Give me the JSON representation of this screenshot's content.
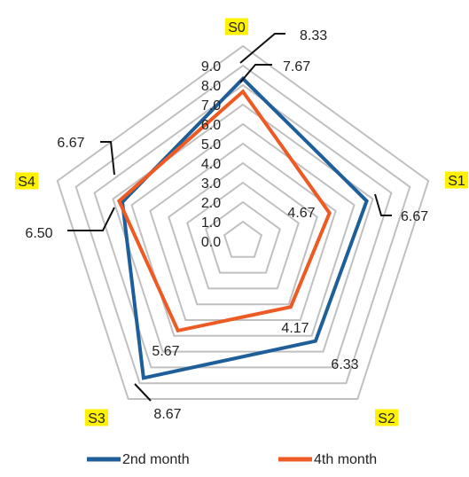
{
  "chart_data": {
    "type": "radar",
    "title": "",
    "categories": [
      "S0",
      "S1",
      "S2",
      "S3",
      "S4"
    ],
    "series": [
      {
        "name": "2nd month",
        "values": [
          8.33,
          6.67,
          6.33,
          8.67,
          6.5
        ],
        "color": "#1f5f99"
      },
      {
        "name": "4th month",
        "values": [
          7.67,
          4.67,
          4.17,
          5.67,
          6.67
        ],
        "color": "#ee5a24"
      }
    ],
    "data_labels": [
      "8.33",
      "7.67",
      "6.67",
      "4.67",
      "6.33",
      "4.17",
      "8.67",
      "5.67",
      "6.50",
      "6.67"
    ],
    "rlim": [
      0,
      10
    ],
    "ticks": [
      "0.0",
      "1.0",
      "2.0",
      "3.0",
      "4.0",
      "5.0",
      "6.0",
      "7.0",
      "8.0",
      "9.0"
    ],
    "grid": true,
    "legend": "bottom",
    "category_label_bg": "#fff200",
    "grid_color": "#c0c0c0"
  }
}
